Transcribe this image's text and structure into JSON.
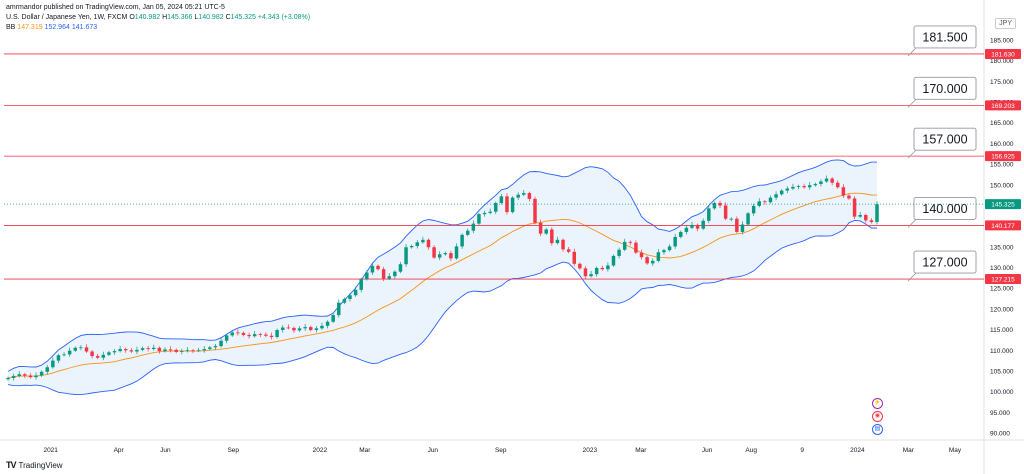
{
  "header": {
    "published_line": "amrmandor published on TradingView.com, Jan 05, 2024 05:21 UTC-5",
    "symbol": "U.S. Dollar / Japanese Yen, 1W, FXCM",
    "ohlc": {
      "o_label": "O",
      "o": "140.982",
      "h_label": "H",
      "h": "145.366",
      "l_label": "L",
      "l": "140.982",
      "c_label": "C",
      "c": "145.325",
      "chg": "+4.343 (+3.08%)"
    },
    "bb": {
      "label": "BB",
      "mid": "147.319",
      "upper": "152.964",
      "lower": "141.673"
    }
  },
  "currency": "JPY",
  "footer": {
    "brand": "TradingView"
  },
  "colors": {
    "up": "#089981",
    "down": "#f23645",
    "bb_mid": "#f7931a",
    "bb_band": "#2962ff",
    "bb_fill": "#e3eefb",
    "hline": "#f23645",
    "callout_text": "#131722",
    "axis_text": "#131722",
    "grid": "#f0f3fa"
  },
  "chart_data": {
    "type": "candlestick",
    "interval": "1W",
    "ylim": [
      89,
      161.5
    ],
    "price_scale_ticks": [
      "90.000",
      "95.000",
      "100.000",
      "105.000",
      "110.000",
      "115.000",
      "120.000",
      "125.000",
      "130.000",
      "135.000",
      "140.000",
      "145.000",
      "150.000",
      "155.000",
      "160.000",
      "165.000",
      "170.000",
      "175.000",
      "180.000",
      "185.000"
    ],
    "time_labels": [
      {
        "label": "2021",
        "t": 0.055
      },
      {
        "label": "Apr",
        "t": 0.135
      },
      {
        "label": "Jun",
        "t": 0.19
      },
      {
        "label": "Sep",
        "t": 0.27
      },
      {
        "label": "2022",
        "t": 0.372
      },
      {
        "label": "Mar",
        "t": 0.425
      },
      {
        "label": "Jun",
        "t": 0.505
      },
      {
        "label": "Sep",
        "t": 0.585
      },
      {
        "label": "2023",
        "t": 0.69
      },
      {
        "label": "Mar",
        "t": 0.75
      },
      {
        "label": "Jun",
        "t": 0.828
      },
      {
        "label": "Aug",
        "t": 0.88
      },
      {
        "label": "9",
        "t": 0.94
      },
      {
        "label": "2024",
        "t": 1.005
      },
      {
        "label": "Mar",
        "t": 1.065
      },
      {
        "label": "May",
        "t": 1.12
      }
    ],
    "last_price_tag": "145.325",
    "horizontal_levels": [
      {
        "price": 181.63,
        "tag": "181.630",
        "callout": "181.500"
      },
      {
        "price": 169.203,
        "tag": "169.203",
        "callout": "170.000"
      },
      {
        "price": 156.925,
        "tag": "156.925",
        "callout": "157.000"
      },
      {
        "price": 140.177,
        "tag": "140.177",
        "callout": "140.000"
      },
      {
        "price": 127.215,
        "tag": "127.215",
        "callout": "127.000"
      }
    ],
    "close_path": [
      103.3,
      103.8,
      104.2,
      103.9,
      103.5,
      103.9,
      104.8,
      105.9,
      107.5,
      108.8,
      109.0,
      109.9,
      110.6,
      110.7,
      109.7,
      108.6,
      108.2,
      108.9,
      109.5,
      109.8,
      110.3,
      110.0,
      109.7,
      110.1,
      110.5,
      110.3,
      110.6,
      109.8,
      110.2,
      110.1,
      109.6,
      109.8,
      110.0,
      109.9,
      110.0,
      110.3,
      110.7,
      111.0,
      112.3,
      113.6,
      114.3,
      114.2,
      113.7,
      113.4,
      113.9,
      113.8,
      113.5,
      113.2,
      114.9,
      115.5,
      115.4,
      114.8,
      115.3,
      115.6,
      114.9,
      115.3,
      115.9,
      116.9,
      118.5,
      121.5,
      122.4,
      123.3,
      124.6,
      127.2,
      128.8,
      130.4,
      129.6,
      127.3,
      127.9,
      129.0,
      130.8,
      134.9,
      135.2,
      136.1,
      136.7,
      134.9,
      132.4,
      133.2,
      133.5,
      132.2,
      135.1,
      137.9,
      138.9,
      140.6,
      142.9,
      143.2,
      143.5,
      145.6,
      147.2,
      143.4,
      146.9,
      147.6,
      148.0,
      146.6,
      140.8,
      138.2,
      139.2,
      135.9,
      136.7,
      134.4,
      133.8,
      130.9,
      129.8,
      127.9,
      128.4,
      129.9,
      129.6,
      130.5,
      132.8,
      134.3,
      136.2,
      136.0,
      133.6,
      132.5,
      131.0,
      131.6,
      133.7,
      134.2,
      135.1,
      137.4,
      138.6,
      139.6,
      140.3,
      139.4,
      141.3,
      144.3,
      145.6,
      145.0,
      141.8,
      141.8,
      138.6,
      140.4,
      143.1,
      144.9,
      146.0,
      145.8,
      146.9,
      147.7,
      148.6,
      149.1,
      149.5,
      149.7,
      149.4,
      149.9,
      150.2,
      150.8,
      151.5,
      150.5,
      149.4,
      147.4,
      146.7,
      142.3,
      142.7,
      141.4,
      141.0,
      145.3
    ],
    "series": [
      {
        "name": "BB",
        "kind": "basis"
      },
      {
        "name": "BB",
        "kind": "upper"
      },
      {
        "name": "BB",
        "kind": "lower"
      }
    ]
  }
}
